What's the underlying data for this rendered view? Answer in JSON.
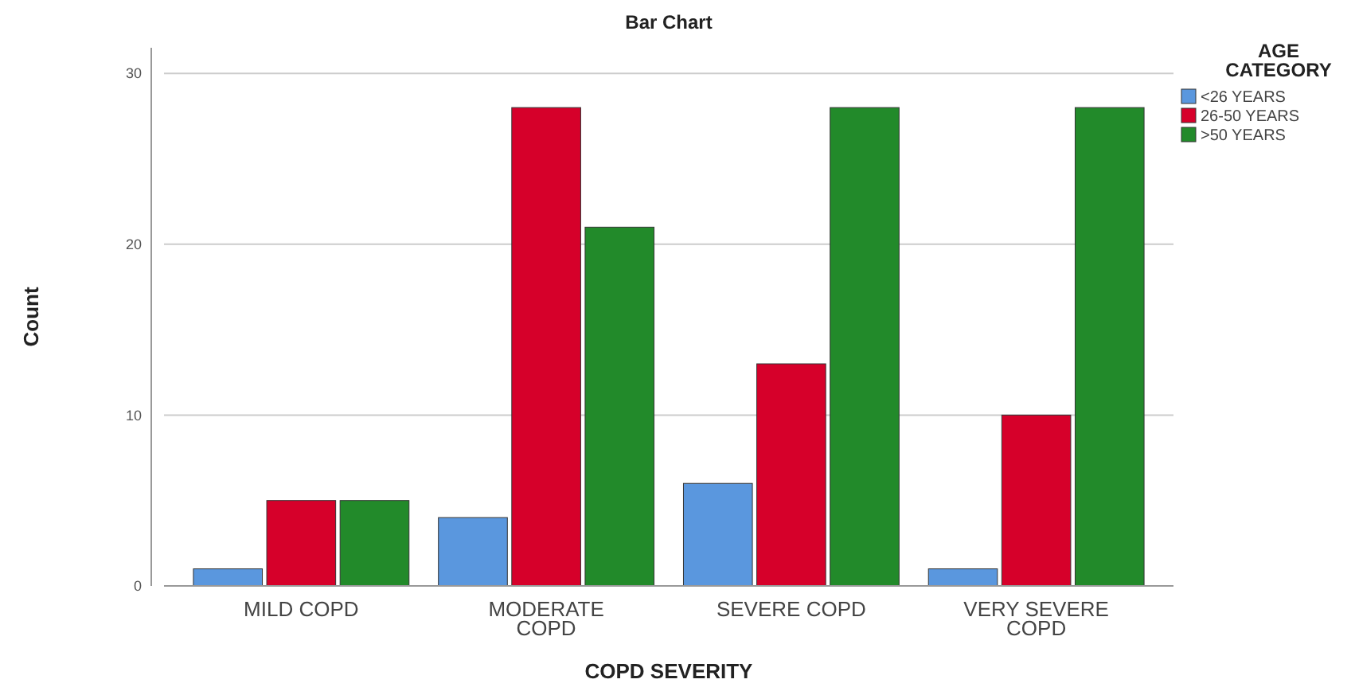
{
  "chart_data": {
    "type": "bar",
    "title": "Bar Chart",
    "xlabel": "COPD SEVERITY",
    "ylabel": "Count",
    "legend_title": "AGE CATEGORY",
    "categories": [
      "MILD COPD",
      "MODERATE COPD",
      "SEVERE COPD",
      "VERY SEVERE COPD"
    ],
    "series": [
      {
        "name": "<26 YEARS",
        "color": "#5a97de",
        "values": [
          1,
          4,
          6,
          1
        ]
      },
      {
        "name": "26-50 YEARS",
        "color": "#d6002a",
        "values": [
          5,
          28,
          13,
          10
        ]
      },
      {
        "name": ">50 YEARS",
        "color": "#228a2a",
        "values": [
          5,
          21,
          28,
          28
        ]
      }
    ],
    "ylim": [
      0,
      31.5
    ],
    "yticks": [
      0,
      10,
      20,
      30
    ],
    "grid": "y",
    "legend": "top right"
  }
}
